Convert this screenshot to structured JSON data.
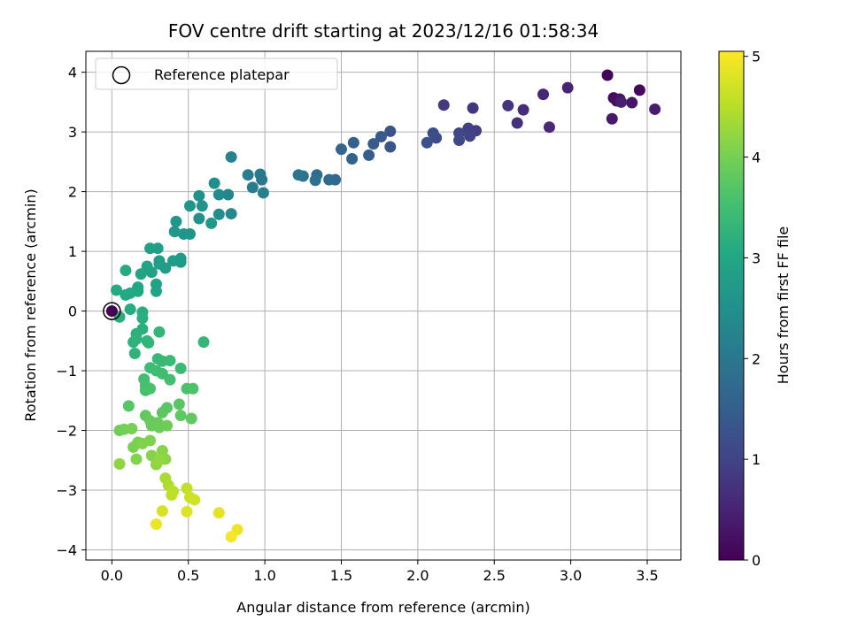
{
  "chart_data": {
    "type": "scatter",
    "title": "FOV centre drift starting at 2023/12/16 01:58:34",
    "xlabel": "Angular distance from reference (arcmin)",
    "ylabel": "Rotation from reference (arcmin)",
    "xlim": [
      -0.17,
      3.72
    ],
    "ylim": [
      -4.17,
      4.35
    ],
    "xticks": [
      "0.0",
      "0.5",
      "1.0",
      "1.5",
      "2.0",
      "2.5",
      "3.0",
      "3.5"
    ],
    "xtick_values": [
      0,
      0.5,
      1,
      1.5,
      2,
      2.5,
      3,
      3.5
    ],
    "yticks": [
      "−4",
      "−3",
      "−2",
      "−1",
      "0",
      "1",
      "2",
      "3",
      "4"
    ],
    "ytick_values": [
      -4,
      -3,
      -2,
      -1,
      0,
      1,
      2,
      3,
      4
    ],
    "grid": true,
    "legend": {
      "placement": "top-left",
      "entries": [
        "Reference platepar"
      ]
    },
    "reference_point": {
      "x": 0,
      "y": 0
    },
    "colorbar": {
      "label": "Hours from first FF file",
      "colormap": "viridis",
      "range": [
        0,
        5.05
      ],
      "ticks": [
        "0",
        "1",
        "2",
        "3",
        "4",
        "5"
      ],
      "tick_values": [
        0,
        1,
        2,
        3,
        4,
        5
      ]
    },
    "points": [
      [
        3.24,
        3.95,
        0.05
      ],
      [
        3.45,
        3.7,
        0.1
      ],
      [
        3.28,
        3.57,
        0.15
      ],
      [
        3.3,
        3.52,
        0.2
      ],
      [
        3.32,
        3.55,
        0.25
      ],
      [
        3.4,
        3.49,
        0.3
      ],
      [
        3.27,
        3.22,
        0.35
      ],
      [
        3.55,
        3.38,
        0.4
      ],
      [
        3.33,
        3.5,
        0.45
      ],
      [
        2.98,
        3.74,
        0.5
      ],
      [
        2.82,
        3.63,
        0.55
      ],
      [
        2.86,
        3.08,
        0.6
      ],
      [
        2.69,
        3.37,
        0.65
      ],
      [
        2.65,
        3.15,
        0.7
      ],
      [
        2.59,
        3.44,
        0.75
      ],
      [
        2.36,
        3.4,
        0.8
      ],
      [
        2.17,
        3.45,
        0.85
      ],
      [
        2.38,
        3.02,
        0.9
      ],
      [
        2.33,
        3.06,
        0.95
      ],
      [
        2.34,
        2.93,
        1.0
      ],
      [
        2.27,
        2.98,
        1.05
      ],
      [
        2.27,
        2.86,
        1.1
      ],
      [
        2.12,
        2.9,
        1.15
      ],
      [
        2.1,
        2.98,
        1.2
      ],
      [
        2.06,
        2.82,
        1.25
      ],
      [
        1.82,
        3.01,
        1.3
      ],
      [
        1.82,
        2.75,
        1.35
      ],
      [
        1.76,
        2.92,
        1.4
      ],
      [
        1.71,
        2.8,
        1.45
      ],
      [
        1.68,
        2.61,
        1.5
      ],
      [
        1.58,
        2.82,
        1.55
      ],
      [
        1.57,
        2.55,
        1.6
      ],
      [
        1.5,
        2.71,
        1.65
      ],
      [
        1.46,
        2.2,
        1.7
      ],
      [
        1.42,
        2.2,
        1.75
      ],
      [
        1.34,
        2.28,
        1.8
      ],
      [
        1.33,
        2.19,
        1.85
      ],
      [
        1.25,
        2.26,
        1.9
      ],
      [
        1.22,
        2.28,
        1.95
      ],
      [
        0.98,
        2.2,
        2.0
      ],
      [
        0.97,
        2.29,
        2.05
      ],
      [
        0.92,
        2.07,
        2.1
      ],
      [
        0.89,
        2.28,
        2.15
      ],
      [
        0.99,
        1.98,
        2.2
      ],
      [
        0.78,
        2.58,
        2.25
      ],
      [
        0.76,
        1.95,
        2.3
      ],
      [
        0.78,
        1.63,
        2.35
      ],
      [
        0.7,
        1.95,
        2.4
      ],
      [
        0.7,
        1.62,
        2.45
      ],
      [
        0.67,
        2.14,
        2.5
      ],
      [
        0.57,
        1.93,
        2.52
      ],
      [
        0.57,
        1.55,
        2.55
      ],
      [
        0.59,
        1.76,
        2.58
      ],
      [
        0.51,
        1.76,
        2.6
      ],
      [
        0.51,
        1.29,
        2.62
      ],
      [
        0.47,
        1.29,
        2.64
      ],
      [
        0.42,
        1.5,
        2.66
      ],
      [
        0.41,
        1.33,
        2.68
      ],
      [
        0.65,
        1.47,
        2.7
      ],
      [
        0.45,
        0.82,
        2.72
      ],
      [
        0.45,
        0.88,
        2.74
      ],
      [
        0.4,
        0.84,
        2.76
      ],
      [
        0.35,
        0.72,
        2.78
      ],
      [
        0.31,
        0.79,
        2.8
      ],
      [
        0.31,
        0.84,
        2.82
      ],
      [
        0.3,
        1.05,
        2.84
      ],
      [
        0.25,
        1.05,
        2.86
      ],
      [
        0.26,
        0.65,
        2.88
      ],
      [
        0.29,
        0.45,
        2.9
      ],
      [
        0.29,
        0.33,
        2.92
      ],
      [
        0.23,
        0.75,
        2.94
      ],
      [
        0.19,
        0.62,
        2.96
      ],
      [
        0.17,
        0.4,
        2.98
      ],
      [
        0.17,
        0.33,
        3.0
      ],
      [
        0.12,
        0.3,
        3.02
      ],
      [
        0.09,
        0.27,
        3.04
      ],
      [
        0.03,
        0.35,
        3.06
      ],
      [
        0.09,
        0.68,
        3.08
      ],
      [
        0.12,
        0.03,
        3.1
      ],
      [
        0.05,
        -0.1,
        3.12
      ],
      [
        0.2,
        -0.02,
        3.14
      ],
      [
        0.2,
        -0.12,
        3.16
      ],
      [
        0.2,
        -0.3,
        3.18
      ],
      [
        0.16,
        -0.38,
        3.2
      ],
      [
        0.14,
        -0.52,
        3.22
      ],
      [
        0.16,
        -0.47,
        3.24
      ],
      [
        0.15,
        -0.71,
        3.26
      ],
      [
        0.24,
        -0.53,
        3.28
      ],
      [
        0.23,
        -0.5,
        3.3
      ],
      [
        0.31,
        -0.35,
        3.32
      ],
      [
        0.6,
        -0.52,
        3.34
      ],
      [
        0.3,
        -0.8,
        3.36
      ],
      [
        0.33,
        -0.84,
        3.38
      ],
      [
        0.38,
        -0.83,
        3.4
      ],
      [
        0.45,
        -0.96,
        3.42
      ],
      [
        0.25,
        -0.95,
        3.44
      ],
      [
        0.29,
        -1.0,
        3.46
      ],
      [
        0.33,
        -1.05,
        3.48
      ],
      [
        0.38,
        -1.15,
        3.5
      ],
      [
        0.21,
        -1.14,
        3.52
      ],
      [
        0.22,
        -1.25,
        3.54
      ],
      [
        0.22,
        -1.33,
        3.56
      ],
      [
        0.25,
        -1.3,
        3.58
      ],
      [
        0.49,
        -1.3,
        3.6
      ],
      [
        0.53,
        -1.3,
        3.62
      ],
      [
        0.11,
        -1.59,
        3.7
      ],
      [
        0.36,
        -1.62,
        3.72
      ],
      [
        0.44,
        -1.56,
        3.74
      ],
      [
        0.33,
        -1.7,
        3.76
      ],
      [
        0.45,
        -1.75,
        3.78
      ],
      [
        0.52,
        -1.8,
        3.8
      ],
      [
        0.22,
        -1.75,
        3.82
      ],
      [
        0.25,
        -1.84,
        3.84
      ],
      [
        0.3,
        -1.87,
        3.86
      ],
      [
        0.26,
        -1.92,
        3.88
      ],
      [
        0.31,
        -1.95,
        3.9
      ],
      [
        0.36,
        -1.92,
        3.92
      ],
      [
        0.05,
        -2.0,
        3.95
      ],
      [
        0.08,
        -1.98,
        3.97
      ],
      [
        0.13,
        -1.97,
        4.0
      ],
      [
        0.17,
        -2.2,
        4.02
      ],
      [
        0.14,
        -2.28,
        4.04
      ],
      [
        0.2,
        -2.22,
        4.06
      ],
      [
        0.25,
        -2.17,
        4.08
      ],
      [
        0.16,
        -2.48,
        4.1
      ],
      [
        0.26,
        -2.42,
        4.12
      ],
      [
        0.33,
        -2.34,
        4.14
      ],
      [
        0.35,
        -2.48,
        4.16
      ],
      [
        0.29,
        -2.57,
        4.18
      ],
      [
        0.05,
        -2.56,
        4.2
      ],
      [
        0.31,
        -2.5,
        4.22
      ],
      [
        0.35,
        -2.8,
        4.4
      ],
      [
        0.37,
        -2.92,
        4.45
      ],
      [
        0.4,
        -3.02,
        4.5
      ],
      [
        0.39,
        -3.08,
        4.55
      ],
      [
        0.49,
        -2.97,
        4.6
      ],
      [
        0.51,
        -3.12,
        4.65
      ],
      [
        0.54,
        -3.16,
        4.7
      ],
      [
        0.33,
        -3.35,
        4.75
      ],
      [
        0.49,
        -3.36,
        4.8
      ],
      [
        0.7,
        -3.38,
        4.85
      ],
      [
        0.29,
        -3.57,
        4.9
      ],
      [
        0.82,
        -3.66,
        4.95
      ],
      [
        0.78,
        -3.78,
        5.0
      ]
    ]
  }
}
